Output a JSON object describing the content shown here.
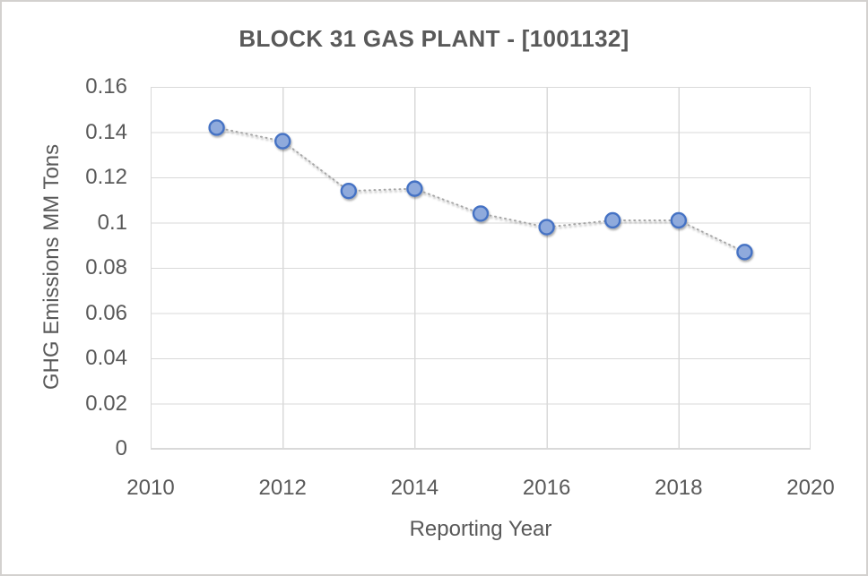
{
  "window": {
    "background": "#ffffff",
    "frame_border_color": "#d3d1cf"
  },
  "chart_data": {
    "type": "line",
    "title": "BLOCK 31 GAS PLANT - [1001132]",
    "xlabel": "Reporting Year",
    "ylabel": "GHG Emissions MM Tons",
    "series": [
      {
        "name": "GHG Emissions",
        "x": [
          2011,
          2012,
          2013,
          2014,
          2015,
          2016,
          2017,
          2018,
          2019
        ],
        "values": [
          0.142,
          0.136,
          0.114,
          0.115,
          0.104,
          0.098,
          0.101,
          0.101,
          0.087
        ]
      }
    ],
    "xlim": [
      2010,
      2020
    ],
    "ylim": [
      0,
      0.16
    ],
    "x_ticks": [
      2010,
      2012,
      2014,
      2016,
      2018,
      2020
    ],
    "x_tick_labels": [
      "2010",
      "2012",
      "2014",
      "2016",
      "2018",
      "2020"
    ],
    "y_ticks": [
      0,
      0.02,
      0.04,
      0.06,
      0.08,
      0.1,
      0.12,
      0.14,
      0.16
    ],
    "y_tick_labels": [
      "0",
      "0.02",
      "0.04",
      "0.06",
      "0.08",
      "0.1",
      "0.12",
      "0.14",
      "0.16"
    ],
    "grid": true,
    "legend": false,
    "line_style": "dotted",
    "marker": "circle",
    "colors": {
      "marker_fill": "#8faadc",
      "marker_border": "#4472c4",
      "line": "#a6a6a6",
      "gridline": "#d9d9d9",
      "plot_border": "#d9d9d9",
      "text": "#595959"
    }
  }
}
